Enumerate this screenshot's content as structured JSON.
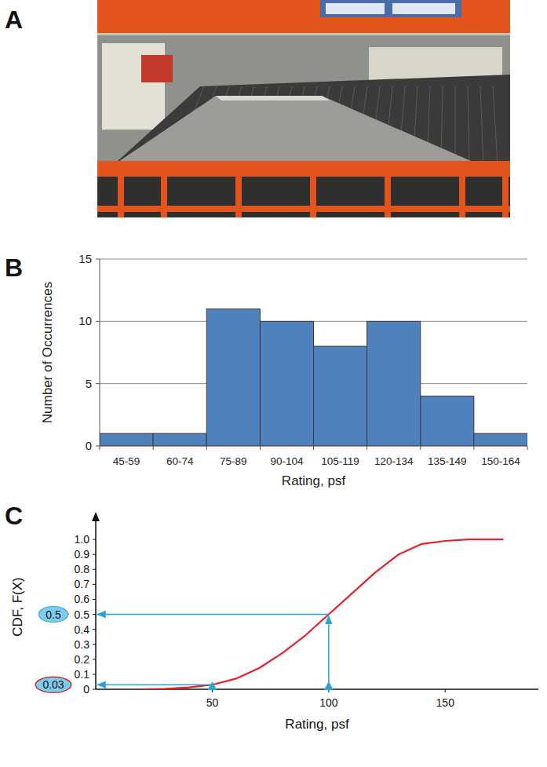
{
  "panel_labels": [
    "A",
    "B",
    "C"
  ],
  "chart_data": [
    {
      "type": "bar",
      "categories": [
        "45-59",
        "60-74",
        "75-89",
        "90-104",
        "105-119",
        "120-134",
        "135-149",
        "150-164"
      ],
      "values": [
        1,
        1,
        11,
        10,
        8,
        10,
        4,
        1
      ],
      "color": "#4f81bd",
      "ylim": [
        0,
        15
      ],
      "yticks": [
        0,
        5,
        10,
        15
      ],
      "grid": true,
      "x_label": "Rating, psf",
      "y_label": "Number of Occurrences"
    },
    {
      "type": "line",
      "x": [
        20,
        30,
        40,
        50,
        60,
        70,
        80,
        90,
        100,
        110,
        120,
        130,
        140,
        150,
        160,
        175
      ],
      "values": [
        0,
        0.003,
        0.012,
        0.03,
        0.07,
        0.14,
        0.24,
        0.36,
        0.5,
        0.64,
        0.78,
        0.9,
        0.97,
        0.99,
        1.0,
        1.0
      ],
      "color": "#e8202a",
      "xlim": [
        0,
        190
      ],
      "xticks": [
        50,
        100,
        150
      ],
      "ylim": [
        0,
        1.1
      ],
      "yticks": [
        0,
        0.1,
        0.2,
        0.3,
        0.4,
        0.5,
        0.6,
        0.7,
        0.8,
        0.9,
        {
          "value": 1,
          "label": "1.0"
        }
      ],
      "grid": false,
      "x_label": "Rating, psf",
      "y_label": "CDF, F(X)",
      "annotations": [
        {
          "x": 50,
          "y": 0.03,
          "label": "0.03"
        },
        {
          "x": 100,
          "y": 0.5,
          "label": "0.5"
        }
      ]
    }
  ]
}
